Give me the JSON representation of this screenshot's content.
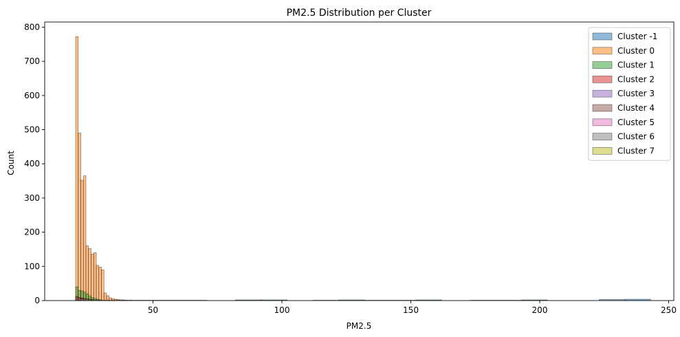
{
  "chart_data": {
    "type": "histogram",
    "title": "PM2.5 Distribution per Cluster",
    "xlabel": "PM2.5",
    "ylabel": "Count",
    "xlim": [
      8,
      252
    ],
    "ylim": [
      0,
      815
    ],
    "xticks": [
      50,
      100,
      150,
      200,
      250
    ],
    "yticks": [
      0,
      100,
      200,
      300,
      400,
      500,
      600,
      700,
      800
    ],
    "grid": false,
    "legend_position": "upper-right",
    "series": [
      {
        "name": "Cluster -1",
        "color": "#1f77b4",
        "bins": [
          {
            "x0": 20,
            "x1": 30,
            "count": 2
          },
          {
            "x0": 30,
            "x1": 40,
            "count": 1
          },
          {
            "x0": 41,
            "x1": 51,
            "count": 1
          },
          {
            "x0": 51,
            "x1": 61,
            "count": 1
          },
          {
            "x0": 61,
            "x1": 71,
            "count": 1
          },
          {
            "x0": 82,
            "x1": 92,
            "count": 2
          },
          {
            "x0": 92,
            "x1": 102,
            "count": 2
          },
          {
            "x0": 112,
            "x1": 122,
            "count": 1
          },
          {
            "x0": 122,
            "x1": 132,
            "count": 2
          },
          {
            "x0": 132,
            "x1": 142,
            "count": 1
          },
          {
            "x0": 142,
            "x1": 152,
            "count": 1
          },
          {
            "x0": 152,
            "x1": 162,
            "count": 2
          },
          {
            "x0": 173,
            "x1": 183,
            "count": 1
          },
          {
            "x0": 183,
            "x1": 193,
            "count": 1
          },
          {
            "x0": 193,
            "x1": 203,
            "count": 2
          },
          {
            "x0": 223,
            "x1": 233,
            "count": 3
          },
          {
            "x0": 233,
            "x1": 243,
            "count": 4
          }
        ]
      },
      {
        "name": "Cluster 0",
        "color": "#ff7f0e",
        "bins": [
          {
            "x0": 20.0,
            "x1": 21.0,
            "count": 772
          },
          {
            "x0": 21.0,
            "x1": 22.0,
            "count": 490
          },
          {
            "x0": 22.0,
            "x1": 23.0,
            "count": 352
          },
          {
            "x0": 23.0,
            "x1": 24.0,
            "count": 365
          },
          {
            "x0": 24.0,
            "x1": 25.0,
            "count": 160
          },
          {
            "x0": 25.0,
            "x1": 26.0,
            "count": 152
          },
          {
            "x0": 26.0,
            "x1": 27.0,
            "count": 136
          },
          {
            "x0": 27.0,
            "x1": 28.0,
            "count": 140
          },
          {
            "x0": 28.0,
            "x1": 29.0,
            "count": 103
          },
          {
            "x0": 29.0,
            "x1": 30.0,
            "count": 98
          },
          {
            "x0": 30.0,
            "x1": 31.0,
            "count": 90
          },
          {
            "x0": 31.0,
            "x1": 32.0,
            "count": 22
          },
          {
            "x0": 32.0,
            "x1": 33.0,
            "count": 14
          },
          {
            "x0": 33.0,
            "x1": 34.0,
            "count": 8
          },
          {
            "x0": 34.0,
            "x1": 35.0,
            "count": 5
          },
          {
            "x0": 35.0,
            "x1": 36.0,
            "count": 4
          },
          {
            "x0": 36.0,
            "x1": 37.0,
            "count": 3
          },
          {
            "x0": 37.0,
            "x1": 38.0,
            "count": 2
          },
          {
            "x0": 38.0,
            "x1": 39.0,
            "count": 2
          },
          {
            "x0": 39.0,
            "x1": 40.0,
            "count": 1
          },
          {
            "x0": 40.0,
            "x1": 41.0,
            "count": 1
          },
          {
            "x0": 41.0,
            "x1": 42.0,
            "count": 1
          }
        ]
      },
      {
        "name": "Cluster 1",
        "color": "#2ca02c",
        "bins": [
          {
            "x0": 20.0,
            "x1": 21.0,
            "count": 40
          },
          {
            "x0": 21.0,
            "x1": 22.0,
            "count": 30
          },
          {
            "x0": 22.0,
            "x1": 23.0,
            "count": 28
          },
          {
            "x0": 23.0,
            "x1": 24.0,
            "count": 25
          },
          {
            "x0": 24.0,
            "x1": 25.0,
            "count": 20
          },
          {
            "x0": 25.0,
            "x1": 26.0,
            "count": 14
          },
          {
            "x0": 26.0,
            "x1": 27.0,
            "count": 9
          },
          {
            "x0": 27.0,
            "x1": 28.0,
            "count": 6
          },
          {
            "x0": 28.0,
            "x1": 29.0,
            "count": 4
          },
          {
            "x0": 29.0,
            "x1": 30.0,
            "count": 2
          }
        ]
      },
      {
        "name": "Cluster 2",
        "color": "#d62728",
        "bins": [
          {
            "x0": 20.0,
            "x1": 21.0,
            "count": 12
          },
          {
            "x0": 21.0,
            "x1": 22.0,
            "count": 9
          },
          {
            "x0": 22.0,
            "x1": 23.0,
            "count": 7
          },
          {
            "x0": 23.0,
            "x1": 24.0,
            "count": 5
          },
          {
            "x0": 24.0,
            "x1": 25.0,
            "count": 3
          }
        ]
      },
      {
        "name": "Cluster 3",
        "color": "#9467bd",
        "bins": [
          {
            "x0": 21.0,
            "x1": 22.0,
            "count": 8
          },
          {
            "x0": 22.0,
            "x1": 23.0,
            "count": 6
          },
          {
            "x0": 23.0,
            "x1": 24.0,
            "count": 4
          },
          {
            "x0": 24.0,
            "x1": 25.0,
            "count": 3
          }
        ]
      },
      {
        "name": "Cluster 4",
        "color": "#8c564b",
        "bins": [
          {
            "x0": 20.0,
            "x1": 21.0,
            "count": 10
          },
          {
            "x0": 21.0,
            "x1": 22.0,
            "count": 8
          },
          {
            "x0": 22.0,
            "x1": 23.0,
            "count": 6
          },
          {
            "x0": 23.0,
            "x1": 24.0,
            "count": 5
          },
          {
            "x0": 24.0,
            "x1": 25.0,
            "count": 4
          },
          {
            "x0": 25.0,
            "x1": 26.0,
            "count": 3
          }
        ]
      },
      {
        "name": "Cluster 5",
        "color": "#e377c2",
        "bins": [
          {
            "x0": 22.0,
            "x1": 23.0,
            "count": 5
          },
          {
            "x0": 23.0,
            "x1": 24.0,
            "count": 4
          },
          {
            "x0": 24.0,
            "x1": 25.0,
            "count": 3
          }
        ]
      },
      {
        "name": "Cluster 6",
        "color": "#7f7f7f",
        "bins": [
          {
            "x0": 23.0,
            "x1": 24.0,
            "count": 6
          },
          {
            "x0": 24.0,
            "x1": 25.0,
            "count": 5
          },
          {
            "x0": 25.0,
            "x1": 26.0,
            "count": 4
          },
          {
            "x0": 26.0,
            "x1": 27.0,
            "count": 3
          }
        ]
      },
      {
        "name": "Cluster 7",
        "color": "#bcbd22",
        "bins": [
          {
            "x0": 24.0,
            "x1": 25.0,
            "count": 4
          },
          {
            "x0": 25.0,
            "x1": 26.0,
            "count": 3
          },
          {
            "x0": 26.0,
            "x1": 27.0,
            "count": 2
          }
        ]
      }
    ]
  }
}
